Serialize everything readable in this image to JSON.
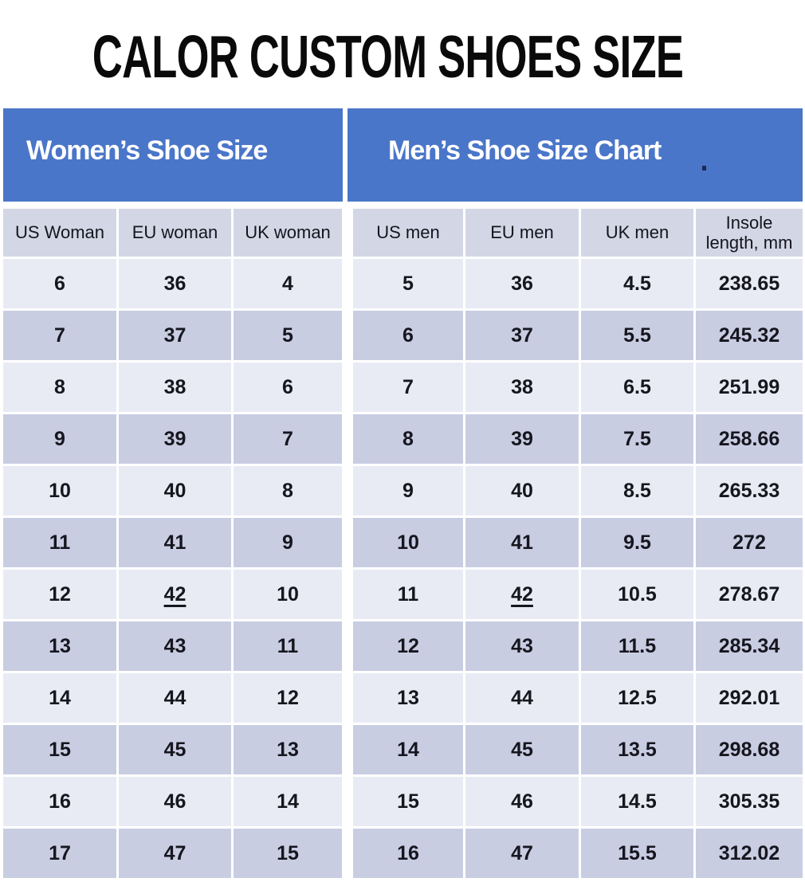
{
  "title": "CALOR CUSTOM SHOES SIZE",
  "colors": {
    "banner_blue": "#4a76c9",
    "column_header_bg": "#d3d6e5",
    "row_light": "#e9ebf4",
    "row_dark": "#c9cde2",
    "text_dark": "#16161f",
    "banner_text": "#ffffff"
  },
  "chart_data": [
    {
      "type": "table",
      "title": "Women’s Shoe Size",
      "columns": [
        "US Woman",
        "EU woman",
        "UK woman"
      ],
      "rows": [
        [
          "6",
          "36",
          "4"
        ],
        [
          "7",
          "37",
          "5"
        ],
        [
          "8",
          "38",
          "6"
        ],
        [
          "9",
          "39",
          "7"
        ],
        [
          "10",
          "40",
          "8"
        ],
        [
          "11",
          "41",
          "9"
        ],
        [
          "12",
          "42",
          "10"
        ],
        [
          "13",
          "43",
          "11"
        ],
        [
          "14",
          "44",
          "12"
        ],
        [
          "15",
          "45",
          "13"
        ],
        [
          "16",
          "46",
          "14"
        ],
        [
          "17",
          "47",
          "15"
        ]
      ],
      "underlined_cells": [
        {
          "row": 6,
          "col": 1,
          "value": "42"
        }
      ]
    },
    {
      "type": "table",
      "title": "Men’s Shoe Size Chart",
      "columns": [
        "US men",
        "EU men",
        "UK men",
        "Insole length, mm"
      ],
      "rows": [
        [
          "5",
          "36",
          "4.5",
          "238.65"
        ],
        [
          "6",
          "37",
          "5.5",
          "245.32"
        ],
        [
          "7",
          "38",
          "6.5",
          "251.99"
        ],
        [
          "8",
          "39",
          "7.5",
          "258.66"
        ],
        [
          "9",
          "40",
          "8.5",
          "265.33"
        ],
        [
          "10",
          "41",
          "9.5",
          "272"
        ],
        [
          "11",
          "42",
          "10.5",
          "278.67"
        ],
        [
          "12",
          "43",
          "11.5",
          "285.34"
        ],
        [
          "13",
          "44",
          "12.5",
          "292.01"
        ],
        [
          "14",
          "45",
          "13.5",
          "298.68"
        ],
        [
          "15",
          "46",
          "14.5",
          "305.35"
        ],
        [
          "16",
          "47",
          "15.5",
          "312.02"
        ]
      ],
      "underlined_cells": [
        {
          "row": 6,
          "col": 1,
          "value": "42"
        }
      ]
    }
  ]
}
